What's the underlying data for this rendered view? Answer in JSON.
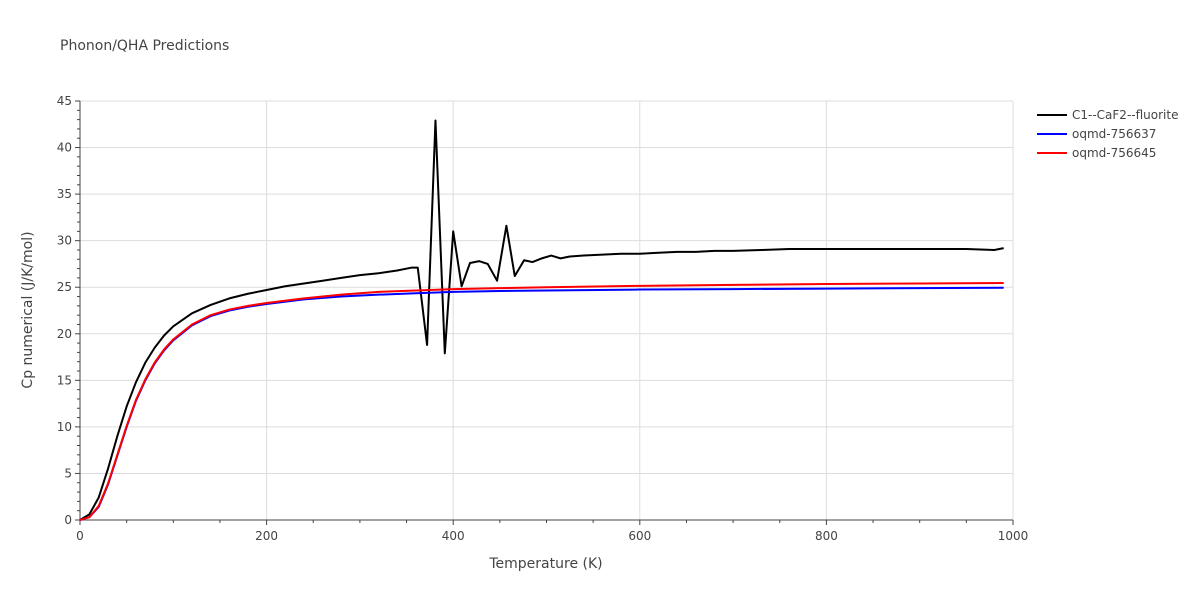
{
  "chart_data": {
    "type": "line",
    "title": "Phonon/QHA Predictions",
    "xlabel": "Temperature (K)",
    "ylabel": "Cp numerical (J/K/mol)",
    "xlim": [
      0,
      1000
    ],
    "ylim": [
      0,
      45
    ],
    "x_ticks": [
      0,
      200,
      400,
      600,
      800,
      1000
    ],
    "y_ticks": [
      0,
      5,
      10,
      15,
      20,
      25,
      30,
      35,
      40,
      45
    ],
    "x_tick_labels": [
      "0",
      "200",
      "400",
      "600",
      "800",
      "1000"
    ],
    "y_tick_labels": [
      "0",
      "5",
      "10",
      "15",
      "20",
      "25",
      "30",
      "35",
      "40",
      "45"
    ],
    "grid": true,
    "legend_position": "top-right",
    "series": [
      {
        "name": "C1--CaF2--fluorite",
        "color": "#000000",
        "points": [
          [
            0,
            0
          ],
          [
            10,
            0.6
          ],
          [
            20,
            2.4
          ],
          [
            30,
            5.5
          ],
          [
            40,
            9.0
          ],
          [
            50,
            12.2
          ],
          [
            60,
            14.8
          ],
          [
            70,
            16.9
          ],
          [
            80,
            18.5
          ],
          [
            90,
            19.8
          ],
          [
            100,
            20.8
          ],
          [
            120,
            22.2
          ],
          [
            140,
            23.1
          ],
          [
            160,
            23.8
          ],
          [
            180,
            24.3
          ],
          [
            200,
            24.7
          ],
          [
            220,
            25.1
          ],
          [
            240,
            25.4
          ],
          [
            260,
            25.7
          ],
          [
            280,
            26.0
          ],
          [
            300,
            26.3
          ],
          [
            320,
            26.5
          ],
          [
            340,
            26.8
          ],
          [
            355,
            27.1
          ],
          [
            362,
            27.1
          ],
          [
            372,
            18.8
          ],
          [
            381,
            42.9
          ],
          [
            391,
            17.9
          ],
          [
            400,
            31.0
          ],
          [
            409,
            25.1
          ],
          [
            418,
            27.6
          ],
          [
            428,
            27.8
          ],
          [
            437,
            27.5
          ],
          [
            447,
            25.7
          ],
          [
            457,
            31.6
          ],
          [
            466,
            26.2
          ],
          [
            476,
            27.9
          ],
          [
            485,
            27.7
          ],
          [
            495,
            28.1
          ],
          [
            505,
            28.4
          ],
          [
            515,
            28.1
          ],
          [
            525,
            28.3
          ],
          [
            540,
            28.4
          ],
          [
            560,
            28.5
          ],
          [
            580,
            28.6
          ],
          [
            600,
            28.6
          ],
          [
            620,
            28.7
          ],
          [
            640,
            28.8
          ],
          [
            660,
            28.8
          ],
          [
            680,
            28.9
          ],
          [
            700,
            28.9
          ],
          [
            730,
            29.0
          ],
          [
            760,
            29.1
          ],
          [
            780,
            29.1
          ],
          [
            800,
            29.1
          ],
          [
            830,
            29.1
          ],
          [
            860,
            29.1
          ],
          [
            900,
            29.1
          ],
          [
            950,
            29.1
          ],
          [
            980,
            29.0
          ],
          [
            990,
            29.2
          ]
        ]
      },
      {
        "name": "oqmd-756637",
        "color": "#0000ff",
        "points": [
          [
            0,
            0
          ],
          [
            10,
            0.3
          ],
          [
            20,
            1.4
          ],
          [
            30,
            3.8
          ],
          [
            40,
            6.9
          ],
          [
            50,
            10.0
          ],
          [
            60,
            12.8
          ],
          [
            70,
            15.0
          ],
          [
            80,
            16.8
          ],
          [
            90,
            18.2
          ],
          [
            100,
            19.3
          ],
          [
            120,
            20.9
          ],
          [
            140,
            21.9
          ],
          [
            160,
            22.5
          ],
          [
            180,
            22.9
          ],
          [
            200,
            23.2
          ],
          [
            240,
            23.7
          ],
          [
            280,
            24.0
          ],
          [
            320,
            24.2
          ],
          [
            360,
            24.35
          ],
          [
            400,
            24.5
          ],
          [
            450,
            24.6
          ],
          [
            500,
            24.65
          ],
          [
            600,
            24.75
          ],
          [
            700,
            24.8
          ],
          [
            800,
            24.85
          ],
          [
            900,
            24.9
          ],
          [
            990,
            24.95
          ]
        ]
      },
      {
        "name": "oqmd-756645",
        "color": "#ff0000",
        "points": [
          [
            0,
            0
          ],
          [
            10,
            0.3
          ],
          [
            20,
            1.5
          ],
          [
            30,
            3.9
          ],
          [
            40,
            7.0
          ],
          [
            50,
            10.1
          ],
          [
            60,
            12.9
          ],
          [
            70,
            15.1
          ],
          [
            80,
            16.9
          ],
          [
            90,
            18.3
          ],
          [
            100,
            19.4
          ],
          [
            120,
            21.0
          ],
          [
            140,
            22.0
          ],
          [
            160,
            22.6
          ],
          [
            180,
            23.0
          ],
          [
            200,
            23.3
          ],
          [
            240,
            23.8
          ],
          [
            280,
            24.2
          ],
          [
            320,
            24.5
          ],
          [
            360,
            24.65
          ],
          [
            400,
            24.8
          ],
          [
            450,
            24.9
          ],
          [
            500,
            25.0
          ],
          [
            600,
            25.15
          ],
          [
            700,
            25.25
          ],
          [
            800,
            25.35
          ],
          [
            900,
            25.4
          ],
          [
            990,
            25.45
          ]
        ]
      }
    ]
  }
}
